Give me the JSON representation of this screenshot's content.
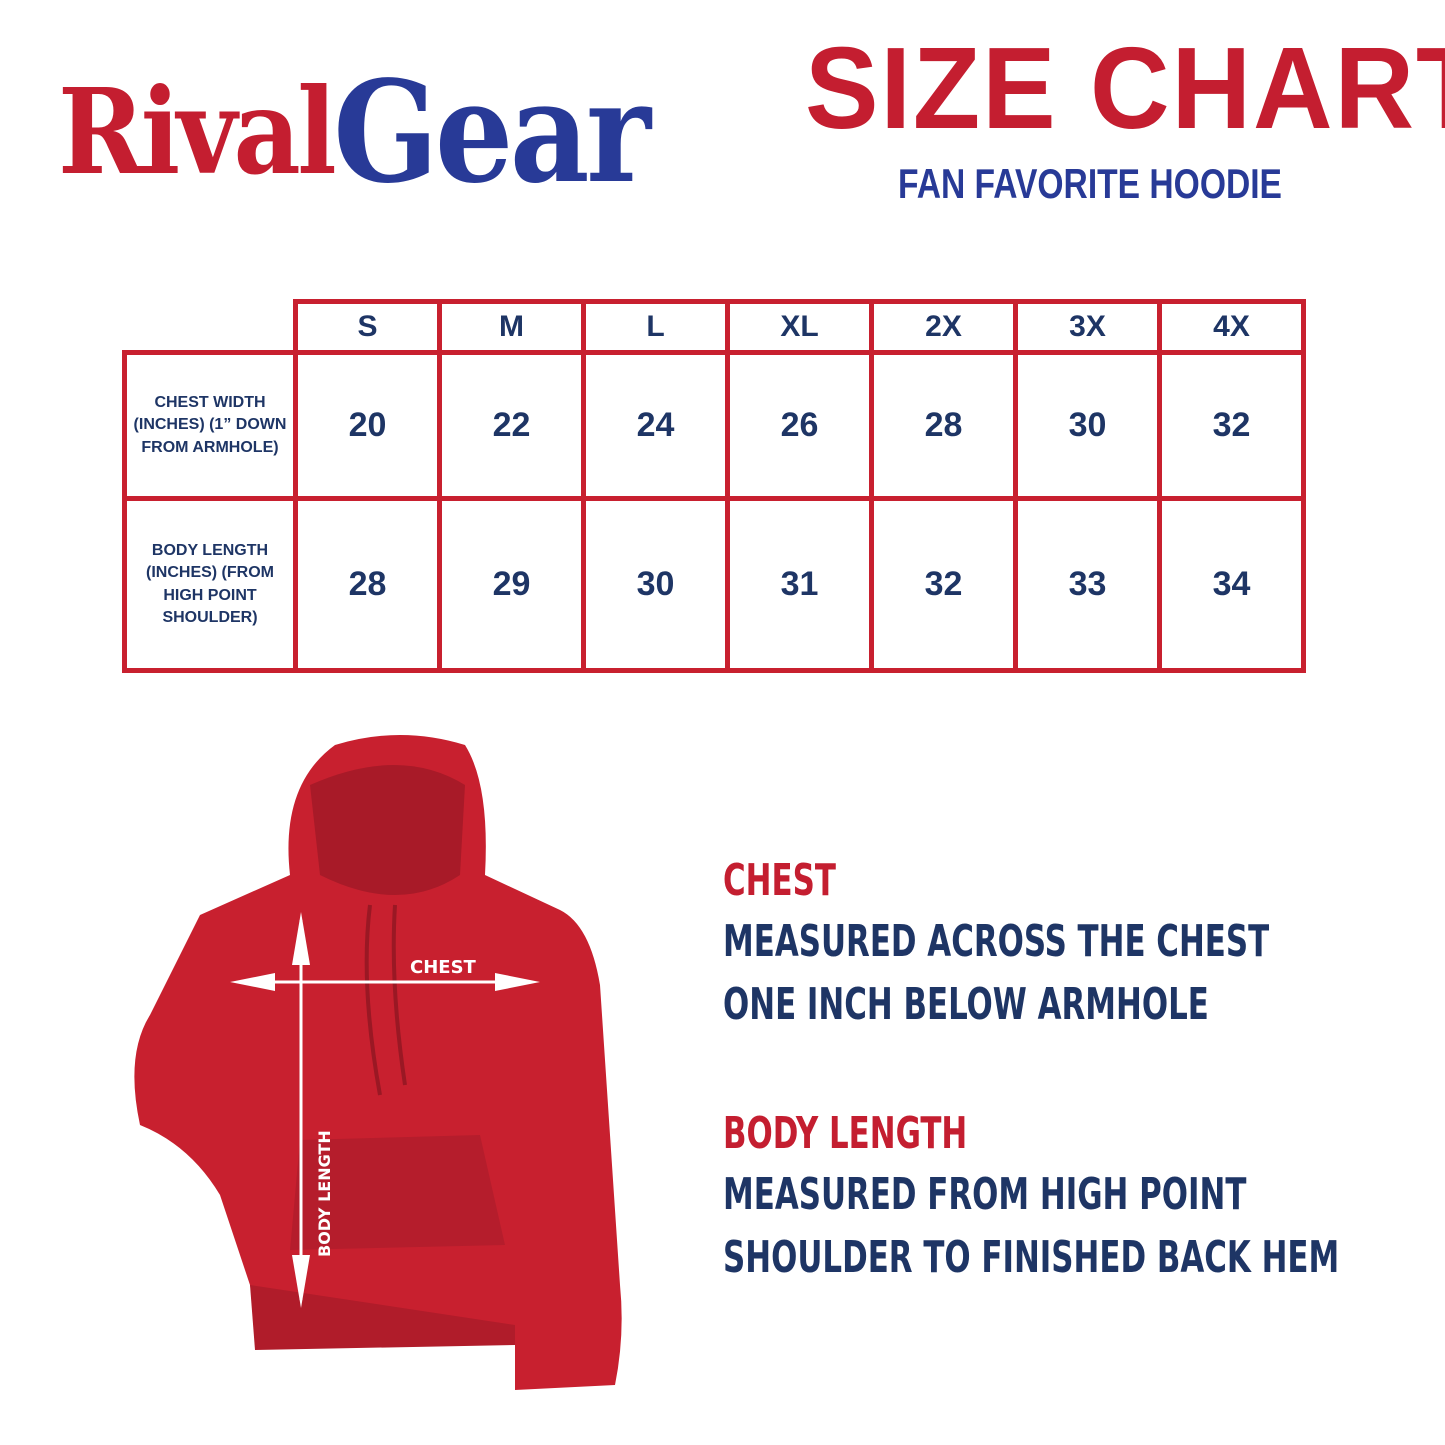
{
  "brand": {
    "part1": "Rival",
    "part2": "Gear"
  },
  "header": {
    "title": "SIZE CHART",
    "subtitle": "FAN FAVORITE HOODIE"
  },
  "table": {
    "sizes": [
      "S",
      "M",
      "L",
      "XL",
      "2X",
      "3X",
      "4X"
    ],
    "rows": [
      {
        "label": "CHEST WIDTH (INCHES) (1” DOWN FROM ARMHOLE)",
        "values": [
          "20",
          "22",
          "24",
          "26",
          "28",
          "30",
          "32"
        ]
      },
      {
        "label": "BODY LENGTH (INCHES) (FROM HIGH POINT SHOULDER)",
        "values": [
          "28",
          "29",
          "30",
          "31",
          "32",
          "33",
          "34"
        ]
      }
    ]
  },
  "diagram": {
    "chest_label": "CHEST",
    "length_label": "BODY LENGTH"
  },
  "descriptions": [
    {
      "heading": "CHEST",
      "lines": [
        "MEASURED ACROSS THE CHEST",
        "ONE INCH BELOW ARMHOLE"
      ]
    },
    {
      "heading": "BODY LENGTH",
      "lines": [
        "MEASURED FROM HIGH POINT",
        "SHOULDER TO FINISHED BACK HEM"
      ]
    }
  ],
  "colors": {
    "red": "#c8202f",
    "navy": "#1e3565",
    "blue": "#283a97"
  }
}
